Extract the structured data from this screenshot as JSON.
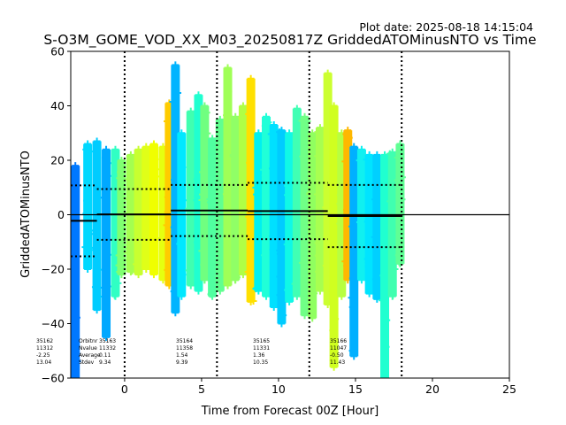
{
  "header": {
    "plot_date": "Plot date: 2025-08-18 14:15:04"
  },
  "chart_data": {
    "type": "scatter",
    "title": "S-O3M_GOME_VOD_XX_M03_20250817Z GriddedATOMinusNTO vs Time",
    "xlabel": "Time from Forecast 00Z [Hour]",
    "ylabel": "GriddedATOMinusNTO",
    "xlim": [
      -3.5,
      25
    ],
    "ylim": [
      -60,
      60
    ],
    "xticks": [
      0,
      5,
      10,
      15,
      20,
      25
    ],
    "yticks": [
      -60,
      -40,
      -20,
      0,
      20,
      40,
      60
    ],
    "grid": false,
    "legend": "none",
    "marker": "+",
    "color_map": "jet",
    "vertical_lines_x": [
      0,
      6,
      12,
      18
    ],
    "zero_line_y": 0,
    "orbits": [
      {
        "orbit": "35162",
        "nvalue": "11312",
        "average": "-2.25",
        "stdev": "13.04",
        "x_start": -3.5,
        "x_end": -1.8,
        "mean": -2.25,
        "sd": 13.04
      },
      {
        "orbit": "35163",
        "nvalue": "11332",
        "average": "0.11",
        "stdev": "9.34",
        "x_start": -1.8,
        "x_end": 3.0,
        "mean": 0.11,
        "sd": 9.34
      },
      {
        "orbit": "35164",
        "nvalue": "11358",
        "average": "1.54",
        "stdev": "9.39",
        "x_start": 3.0,
        "x_end": 8.0,
        "mean": 1.54,
        "sd": 9.39
      },
      {
        "orbit": "35165",
        "nvalue": "11331",
        "average": "1.36",
        "stdev": "10.35",
        "x_start": 8.0,
        "x_end": 13.2,
        "mean": 1.36,
        "sd": 10.35
      },
      {
        "orbit": "35166",
        "nvalue": "11047",
        "average": "-0.50",
        "stdev": "11.43",
        "x_start": 13.2,
        "x_end": 18.0,
        "mean": -0.5,
        "sd": 11.43
      }
    ],
    "stats_row_labels": [
      "Orbitnr",
      "Nvalue",
      "Average",
      "Stdev"
    ],
    "strips": [
      {
        "x": -3.2,
        "ymin": -60,
        "ymax": 18,
        "color": "#0078ff"
      },
      {
        "x": -2.4,
        "ymin": -20,
        "ymax": 26,
        "color": "#00d8ff"
      },
      {
        "x": -1.8,
        "ymin": -35,
        "ymax": 27,
        "color": "#00ccff"
      },
      {
        "x": -1.2,
        "ymin": -45,
        "ymax": 24,
        "color": "#00a8ff"
      },
      {
        "x": -0.6,
        "ymin": -30,
        "ymax": 24,
        "color": "#30ffc4"
      },
      {
        "x": -0.2,
        "ymin": -22,
        "ymax": 20,
        "color": "#80ff70"
      },
      {
        "x": 0.4,
        "ymin": -21,
        "ymax": 22,
        "color": "#a4ff50"
      },
      {
        "x": 0.9,
        "ymin": -22,
        "ymax": 24,
        "color": "#c8ff30"
      },
      {
        "x": 1.4,
        "ymin": -20,
        "ymax": 25,
        "color": "#e0ff18"
      },
      {
        "x": 1.9,
        "ymin": -22,
        "ymax": 26,
        "color": "#f0ff00"
      },
      {
        "x": 2.5,
        "ymin": -24,
        "ymax": 25,
        "color": "#e6ff10"
      },
      {
        "x": 2.9,
        "ymin": -26,
        "ymax": 41,
        "color": "#ffcc00"
      },
      {
        "x": 3.3,
        "ymin": -36,
        "ymax": 55,
        "color": "#00b4ff"
      },
      {
        "x": 3.7,
        "ymin": -30,
        "ymax": 30,
        "color": "#00e8ff"
      },
      {
        "x": 4.3,
        "ymin": -26,
        "ymax": 38,
        "color": "#40ffb0"
      },
      {
        "x": 4.8,
        "ymin": -28,
        "ymax": 44,
        "color": "#20ffd0"
      },
      {
        "x": 5.2,
        "ymin": -24,
        "ymax": 40,
        "color": "#70ff80"
      },
      {
        "x": 5.7,
        "ymin": -30,
        "ymax": 28,
        "color": "#50ffa0"
      },
      {
        "x": 6.2,
        "ymin": -28,
        "ymax": 35,
        "color": "#60ff90"
      },
      {
        "x": 6.7,
        "ymin": -26,
        "ymax": 54,
        "color": "#a0ff56"
      },
      {
        "x": 7.2,
        "ymin": -24,
        "ymax": 36,
        "color": "#90ff66"
      },
      {
        "x": 7.7,
        "ymin": -22,
        "ymax": 40,
        "color": "#b0ff46"
      },
      {
        "x": 8.2,
        "ymin": -32,
        "ymax": 50,
        "color": "#ffe000"
      },
      {
        "x": 8.7,
        "ymin": -28,
        "ymax": 30,
        "color": "#00f0f0"
      },
      {
        "x": 9.2,
        "ymin": -30,
        "ymax": 36,
        "color": "#20ffd8"
      },
      {
        "x": 9.7,
        "ymin": -34,
        "ymax": 33,
        "color": "#00e0ff"
      },
      {
        "x": 10.2,
        "ymin": -40,
        "ymax": 31,
        "color": "#00ccff"
      },
      {
        "x": 10.7,
        "ymin": -32,
        "ymax": 30,
        "color": "#10f8e6"
      },
      {
        "x": 11.2,
        "ymin": -30,
        "ymax": 39,
        "color": "#40ffb4"
      },
      {
        "x": 11.7,
        "ymin": -37,
        "ymax": 36,
        "color": "#70ff86"
      },
      {
        "x": 12.2,
        "ymin": -38,
        "ymax": 30,
        "color": "#90ff60"
      },
      {
        "x": 12.7,
        "ymin": -28,
        "ymax": 32,
        "color": "#a8ff50"
      },
      {
        "x": 13.2,
        "ymin": -33,
        "ymax": 52,
        "color": "#ccff30"
      },
      {
        "x": 13.6,
        "ymin": -56,
        "ymax": 40,
        "color": "#d0ff20"
      },
      {
        "x": 14.1,
        "ymin": -30,
        "ymax": 30,
        "color": "#b8ff40"
      },
      {
        "x": 14.5,
        "ymin": -24,
        "ymax": 31,
        "color": "#ffb800"
      },
      {
        "x": 14.9,
        "ymin": -52,
        "ymax": 25,
        "color": "#00b0ff"
      },
      {
        "x": 15.4,
        "ymin": -24,
        "ymax": 24,
        "color": "#10f0f0"
      },
      {
        "x": 15.9,
        "ymin": -29,
        "ymax": 22,
        "color": "#00e4ff"
      },
      {
        "x": 16.4,
        "ymin": -31,
        "ymax": 22,
        "color": "#00d0ff"
      },
      {
        "x": 16.9,
        "ymin": -60,
        "ymax": 22,
        "color": "#20ffd0"
      },
      {
        "x": 17.4,
        "ymin": -30,
        "ymax": 23,
        "color": "#40ffb0"
      },
      {
        "x": 17.9,
        "ymin": -18,
        "ymax": 26,
        "color": "#60ff94"
      }
    ]
  }
}
